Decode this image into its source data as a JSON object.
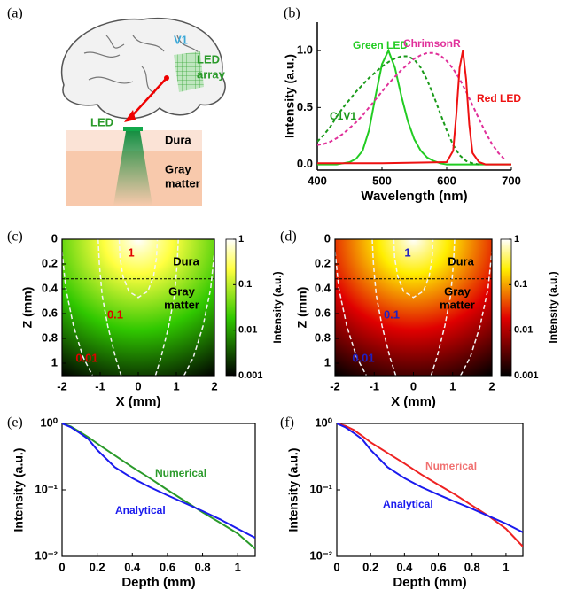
{
  "diagram": {
    "panel": "(a)",
    "v1": "V1",
    "led_array": [
      "LED",
      "array"
    ],
    "led": "LED",
    "dura": "Dura",
    "gray_matter": [
      "Gray",
      "matter"
    ]
  },
  "chart_data": [
    {
      "type": "line",
      "panel": "(b)",
      "xlabel": "Wavelength (nm)",
      "ylabel": "Intensity (a.u.)",
      "xlim": [
        400,
        700
      ],
      "xticks": [
        400,
        500,
        600,
        700
      ],
      "ylim": [
        -0.05,
        1.25
      ],
      "yticks": [
        {
          "value": 0,
          "label": "0.0"
        },
        0.5,
        {
          "value": 1,
          "label": "1.0"
        }
      ],
      "axes_box": false,
      "x": [
        400,
        410,
        420,
        430,
        440,
        450,
        460,
        470,
        480,
        490,
        500,
        510,
        520,
        530,
        540,
        550,
        560,
        570,
        580,
        590,
        600,
        610,
        620,
        630,
        640,
        650,
        660,
        670,
        680,
        690,
        700
      ],
      "series": [
        {
          "name": "Green LED",
          "color": "#22cc22",
          "style": "solid",
          "values": [
            0,
            0,
            0,
            0,
            0.01,
            0.02,
            0.05,
            0.12,
            0.3,
            0.6,
            0.88,
            1.0,
            0.85,
            0.6,
            0.38,
            0.22,
            0.12,
            0.06,
            0.03,
            0.01,
            0,
            0,
            0,
            0,
            0,
            0,
            0,
            0,
            0,
            0,
            0
          ]
        },
        {
          "name": "C1V1",
          "color": "#1a9a1a",
          "style": "dashed",
          "values": [
            0.2,
            0.26,
            0.33,
            0.42,
            0.5,
            0.57,
            0.64,
            0.7,
            0.76,
            0.81,
            0.86,
            0.9,
            0.93,
            0.95,
            0.95,
            0.92,
            0.85,
            0.74,
            0.6,
            0.45,
            0.3,
            0.17,
            0.08,
            0.03,
            0.01,
            0,
            null,
            null,
            null,
            null,
            null
          ]
        },
        {
          "name": "ChrimsonR",
          "color": "#e0309a",
          "style": "dashed",
          "values": [
            0.17,
            0.18,
            0.2,
            0.23,
            0.27,
            0.32,
            0.37,
            0.43,
            0.5,
            0.57,
            0.64,
            0.71,
            0.77,
            0.83,
            0.88,
            0.93,
            0.96,
            0.98,
            0.98,
            0.96,
            0.91,
            0.84,
            0.75,
            0.64,
            0.52,
            0.4,
            0.28,
            0.18,
            0.1,
            0.04,
            null
          ]
        },
        {
          "name": "Red LED",
          "color": "#ee1111",
          "style": "solid",
          "x": [
            400,
            500,
            600,
            610,
            615,
            620,
            625,
            630,
            635,
            640,
            650,
            660,
            700
          ],
          "values": [
            0.01,
            0.01,
            0.02,
            0.12,
            0.45,
            0.85,
            1.0,
            0.75,
            0.35,
            0.1,
            0.02,
            0,
            0
          ]
        }
      ]
    },
    {
      "type": "heatmap",
      "panel": "(c)",
      "xlabel": "X (mm)",
      "ylabel": "Z (mm)",
      "cblabel": "Intensity (a.u.)",
      "xlim": [
        -2,
        2
      ],
      "xticks": [
        -2,
        -1,
        0,
        1,
        2
      ],
      "ylim": [
        0,
        1.1
      ],
      "yticks": [
        0,
        0.2,
        0.4,
        0.6,
        0.8,
        1
      ],
      "clim": [
        0.001,
        1
      ],
      "cticks": [
        0.001,
        0.01,
        0.1,
        1
      ],
      "color_scale": "log",
      "colormap": [
        "#ffffff",
        "#ffff40",
        "#30c800",
        "#000000"
      ],
      "contour_label_color": "#e00000",
      "interface_z": 0.32,
      "regions": [
        [
          "Dura"
        ],
        [
          "Gray",
          "matter"
        ]
      ],
      "contours": [
        {
          "level": 1,
          "x": [
            -0.5,
            -0.48,
            -0.4,
            -0.25,
            0,
            0.25,
            0.4,
            0.48,
            0.5
          ],
          "z": [
            0,
            0.15,
            0.3,
            0.42,
            0.47,
            0.42,
            0.3,
            0.15,
            0
          ]
        },
        {
          "level": 0.1,
          "x": [
            -1.05,
            -1.02,
            -0.95,
            -0.8,
            -0.6,
            -0.45,
            null,
            0.45,
            0.6,
            0.8,
            0.95,
            1.02,
            1.05
          ],
          "z": [
            0,
            0.2,
            0.45,
            0.7,
            0.95,
            1.1,
            null,
            1.1,
            0.95,
            0.7,
            0.45,
            0.2,
            0
          ]
        },
        {
          "level": 0.01,
          "x": [
            -2,
            -1.9,
            -1.7,
            -1.45,
            -1.2,
            null,
            1.2,
            1.45,
            1.7,
            1.9,
            2
          ],
          "z": [
            0.1,
            0.4,
            0.7,
            0.95,
            1.1,
            null,
            1.1,
            0.95,
            0.7,
            0.4,
            0.1
          ]
        }
      ]
    },
    {
      "type": "heatmap",
      "panel": "(d)",
      "xlabel": "X (mm)",
      "ylabel": "Z (mm)",
      "cblabel": "Intensity (a.u.)",
      "xlim": [
        -2,
        2
      ],
      "xticks": [
        -2,
        -1,
        0,
        1,
        2
      ],
      "ylim": [
        0,
        1.1
      ],
      "yticks": [
        0,
        0.2,
        0.4,
        0.6,
        0.8,
        1
      ],
      "clim": [
        0.001,
        1
      ],
      "cticks": [
        0.001,
        0.01,
        0.1,
        1
      ],
      "color_scale": "log",
      "colormap": [
        "#ffffff",
        "#ffee00",
        "#e00000",
        "#000000"
      ],
      "contour_label_color": "#2020c0",
      "interface_z": 0.32,
      "regions": [
        [
          "Dura"
        ],
        [
          "Gray",
          "matter"
        ]
      ],
      "contours": [
        {
          "level": 1,
          "x": [
            -0.5,
            -0.48,
            -0.4,
            -0.25,
            0,
            0.25,
            0.4,
            0.48,
            0.5
          ],
          "z": [
            0,
            0.15,
            0.3,
            0.42,
            0.47,
            0.42,
            0.3,
            0.15,
            0
          ]
        },
        {
          "level": 0.1,
          "x": [
            -1.05,
            -1.02,
            -0.95,
            -0.8,
            -0.6,
            -0.45,
            null,
            0.45,
            0.6,
            0.8,
            0.95,
            1.02,
            1.05
          ],
          "z": [
            0,
            0.2,
            0.45,
            0.7,
            0.95,
            1.1,
            null,
            1.1,
            0.95,
            0.7,
            0.45,
            0.2,
            0
          ]
        },
        {
          "level": 0.01,
          "x": [
            -2,
            -1.9,
            -1.7,
            -1.45,
            -1.2,
            null,
            1.2,
            1.45,
            1.7,
            1.9,
            2
          ],
          "z": [
            0.1,
            0.4,
            0.7,
            0.95,
            1.1,
            null,
            1.1,
            0.95,
            0.7,
            0.4,
            0.1
          ]
        }
      ]
    },
    {
      "type": "line",
      "panel": "(e)",
      "xlabel": "Depth (mm)",
      "ylabel": "Intensity (a.u.)",
      "xlim": [
        0,
        1.1
      ],
      "xticks": [
        0,
        0.2,
        0.4,
        0.6,
        0.8,
        1
      ],
      "ylim": [
        0.01,
        1
      ],
      "y_scale": "log",
      "axes_box": true,
      "yticks": [
        {
          "value": 0.01,
          "label": "10⁻²"
        },
        {
          "value": 0.1,
          "label": "10⁻¹"
        },
        {
          "value": 1,
          "label": "10⁰"
        }
      ],
      "x": [
        0,
        0.05,
        0.1,
        0.15,
        0.2,
        0.3,
        0.4,
        0.5,
        0.6,
        0.7,
        0.8,
        0.9,
        1.0,
        1.1
      ],
      "series": [
        {
          "name": "Numerical",
          "color": "#2a9a2a",
          "style": "solid",
          "values": [
            1.0,
            0.9,
            0.75,
            0.62,
            0.5,
            0.33,
            0.22,
            0.15,
            0.1,
            0.068,
            0.046,
            0.032,
            0.022,
            0.013
          ]
        },
        {
          "name": "Analytical",
          "color": "#1a1aee",
          "style": "solid",
          "values": [
            1.0,
            0.88,
            0.72,
            0.58,
            0.4,
            0.22,
            0.15,
            0.11,
            0.083,
            0.063,
            0.048,
            0.036,
            0.026,
            0.019
          ]
        }
      ]
    },
    {
      "type": "line",
      "panel": "(f)",
      "xlabel": "Depth (mm)",
      "ylabel": "Intensity (a.u.)",
      "xlim": [
        0,
        1.1
      ],
      "xticks": [
        0,
        0.2,
        0.4,
        0.6,
        0.8,
        1
      ],
      "ylim": [
        0.01,
        1
      ],
      "y_scale": "log",
      "axes_box": true,
      "yticks": [
        {
          "value": 0.01,
          "label": "10⁻²"
        },
        {
          "value": 0.1,
          "label": "10⁻¹"
        },
        {
          "value": 1,
          "label": "10⁰"
        }
      ],
      "x": [
        0,
        0.05,
        0.1,
        0.15,
        0.2,
        0.3,
        0.4,
        0.5,
        0.6,
        0.7,
        0.8,
        0.9,
        1.0,
        1.1
      ],
      "series": [
        {
          "name": "Numerical",
          "color": "#ee2222",
          "label_color": "#f07070",
          "style": "solid",
          "values": [
            1.0,
            0.92,
            0.8,
            0.65,
            0.52,
            0.36,
            0.25,
            0.17,
            0.12,
            0.085,
            0.058,
            0.04,
            0.026,
            0.014
          ]
        },
        {
          "name": "Analytical",
          "color": "#1a1aee",
          "style": "solid",
          "values": [
            1.0,
            0.88,
            0.72,
            0.58,
            0.4,
            0.22,
            0.15,
            0.11,
            0.085,
            0.066,
            0.052,
            0.04,
            0.031,
            0.023
          ]
        }
      ]
    }
  ]
}
